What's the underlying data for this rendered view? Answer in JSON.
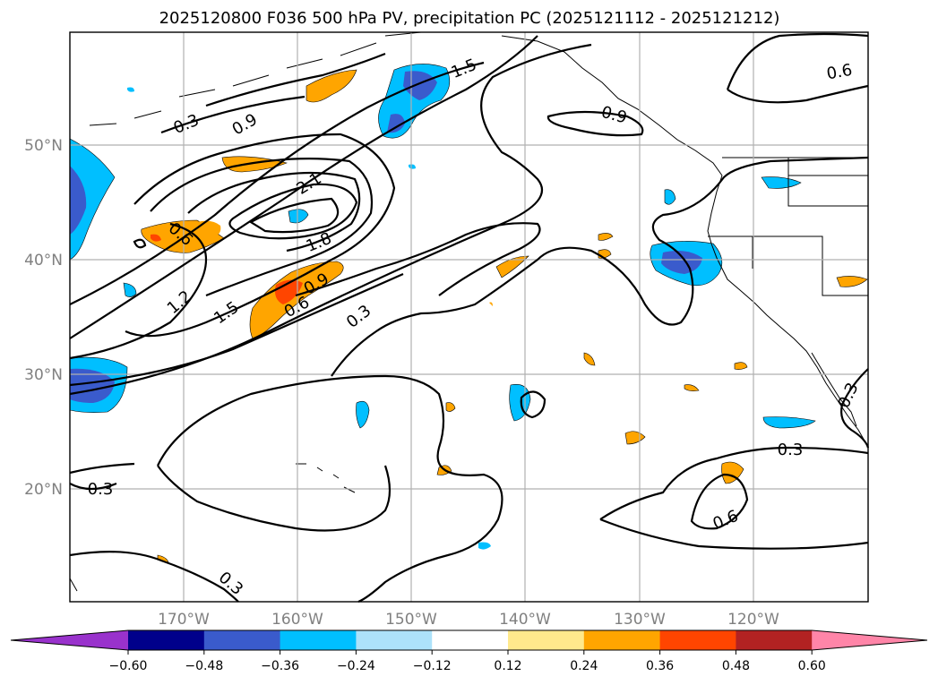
{
  "title": "2025120800 F036 500 hPa PV, precipitation PC (2025121112 - 2025121212)",
  "lat_labels": [
    "50°N",
    "40°N",
    "30°N",
    "20°N"
  ],
  "lon_labels": [
    "170°W",
    "160°W",
    "150°W",
    "140°W",
    "130°W",
    "120°W"
  ],
  "contour_labels": [
    "0.3",
    "0.9",
    "1.5",
    "0.6",
    "0.9",
    "2.1",
    "0.6",
    "1.8",
    "1.2",
    "1.5",
    "0.9",
    "0.6",
    "0.3",
    "0.3",
    "0.3",
    "0.3",
    "0.6",
    "0.3"
  ],
  "colorbar": {
    "ticks": [
      "−0.60",
      "−0.48",
      "−0.36",
      "−0.24",
      "−0.12",
      "0.12",
      "0.24",
      "0.36",
      "0.48",
      "0.60"
    ],
    "colors": [
      "#9932CC",
      "#00008B",
      "#3A5BCC",
      "#00BFFF",
      "#ADE2FA",
      "#FFFFFF",
      "#FFE98C",
      "#FFA500",
      "#FF4500",
      "#B22222",
      "#FF85A8"
    ]
  }
}
